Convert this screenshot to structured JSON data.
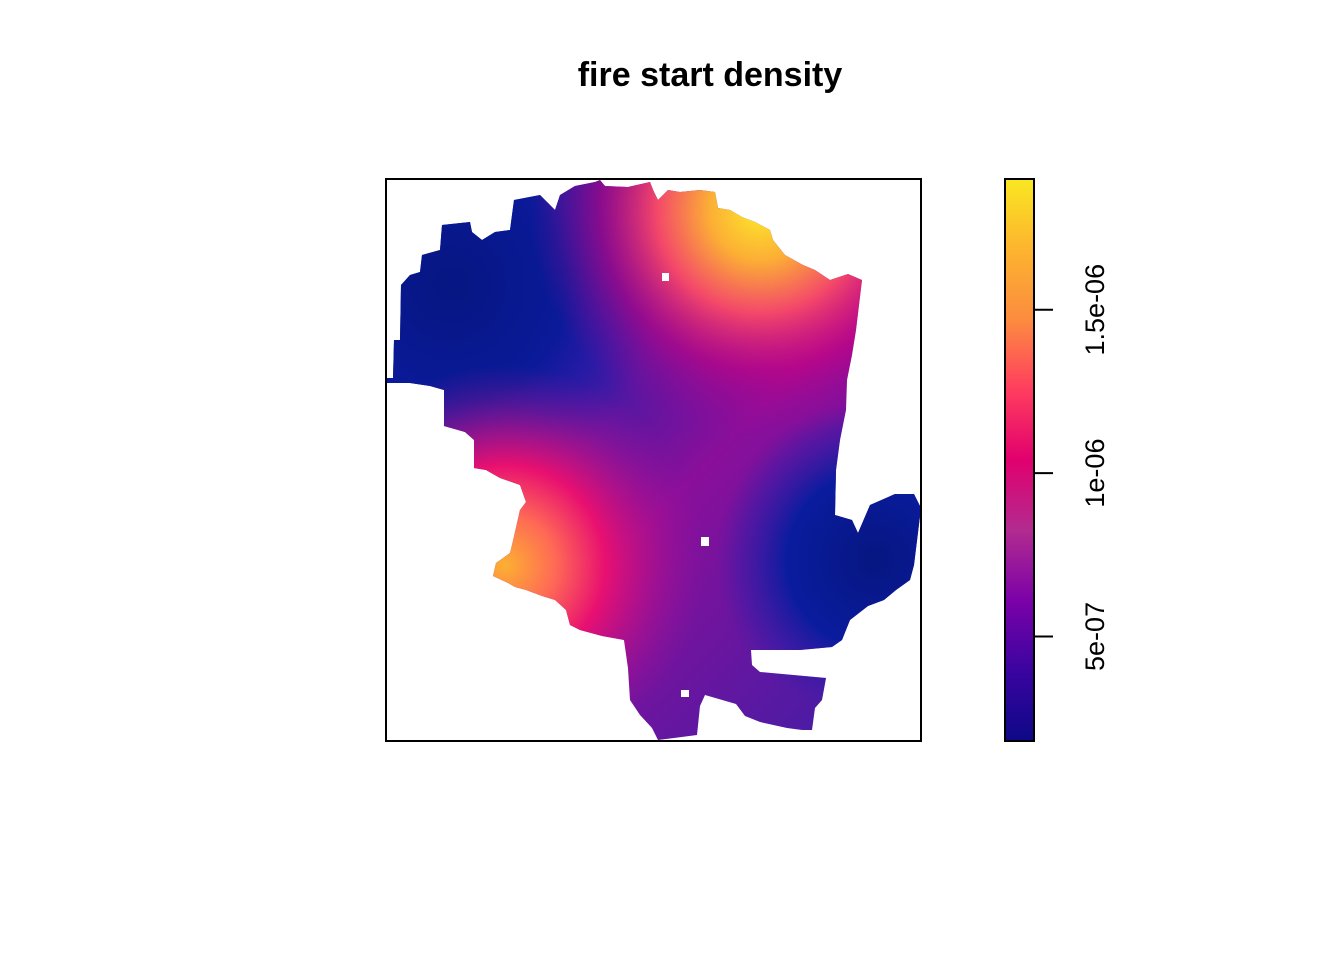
{
  "chart_data": {
    "type": "heatmap",
    "title": "fire start density",
    "xlabel": "",
    "ylabel": "",
    "axes_shown": false,
    "colorbar": {
      "position": "right",
      "range": [
        1.8e-07,
        1.9e-06
      ],
      "ticks": [
        5e-07,
        1e-06,
        1.5e-06
      ],
      "tick_labels": [
        "5e-07",
        "1e-06",
        "1.5e-06"
      ],
      "palette": [
        "#0d0887",
        "#3a04a0",
        "#7b02a8",
        "#b22b8f",
        "#e1006e",
        "#ff3d5f",
        "#fc8c3f",
        "#fdb42f",
        "#f9e721"
      ]
    },
    "density_highs": [
      {
        "region": "north-east",
        "value": 1.9e-06
      },
      {
        "region": "south-west",
        "value": 1.7e-06
      }
    ],
    "density_lows": [
      {
        "region": "north-west",
        "value": 1.9e-07
      },
      {
        "region": "east",
        "value": 2.1e-07
      }
    ]
  }
}
